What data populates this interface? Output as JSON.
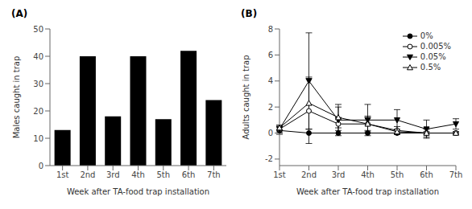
{
  "chart_data": [
    {
      "type": "bar",
      "title": "(A)",
      "categories": [
        "1st",
        "2nd",
        "3rd",
        "4th",
        "5th",
        "6th",
        "7th"
      ],
      "values": [
        13,
        40,
        18,
        40,
        17,
        42,
        24
      ],
      "color": "#000000",
      "y_label": "Males caught in trap",
      "x_label": "Week after TA-food trap installation",
      "ylim": [
        0,
        50
      ],
      "yticks": [
        0,
        10,
        20,
        30,
        40,
        50
      ],
      "grid": false
    },
    {
      "type": "line",
      "title": "(B)",
      "categories": [
        "1st",
        "2nd",
        "3rd",
        "4th",
        "5th",
        "6th",
        "7th"
      ],
      "y_label": "Adults caught in trap",
      "x_label": "Week after TA-food trap installation",
      "ylim": [
        -2.5,
        8
      ],
      "yticks": [
        -2,
        0,
        2,
        4,
        6,
        8
      ],
      "grid": false,
      "legend": "upper right",
      "series": [
        {
          "name": "0%",
          "color": "#000000",
          "marker": "circle",
          "values": [
            0.2,
            0.0,
            0.0,
            0.0,
            0.0,
            0.0,
            0.0
          ],
          "errors": [
            0.3,
            0.0,
            0.0,
            0.0,
            0.0,
            0.0,
            0.0
          ]
        },
        {
          "name": "0.005%",
          "color": "#000000",
          "marker": "open_circle",
          "values": [
            0.3,
            1.7,
            0.7,
            0.7,
            0.2,
            0.0,
            0.0
          ],
          "errors": [
            0.3,
            2.5,
            0.5,
            0.5,
            0.3,
            0.3,
            0.1
          ]
        },
        {
          "name": "0.05%",
          "color": "#000000",
          "marker": "triangle_down",
          "values": [
            0.3,
            4.0,
            1.0,
            1.0,
            1.0,
            0.3,
            0.7
          ],
          "errors": [
            0.2,
            3.7,
            1.2,
            1.2,
            0.8,
            0.7,
            0.4
          ]
        },
        {
          "name": "0.5%",
          "color": "#000000",
          "marker": "open_triangle_up",
          "values": [
            0.4,
            2.3,
            1.2,
            0.7,
            0.1,
            0.0,
            0.0
          ],
          "errors": [
            0.2,
            2.0,
            0.8,
            0.6,
            0.2,
            0.1,
            0.1
          ]
        }
      ]
    }
  ]
}
